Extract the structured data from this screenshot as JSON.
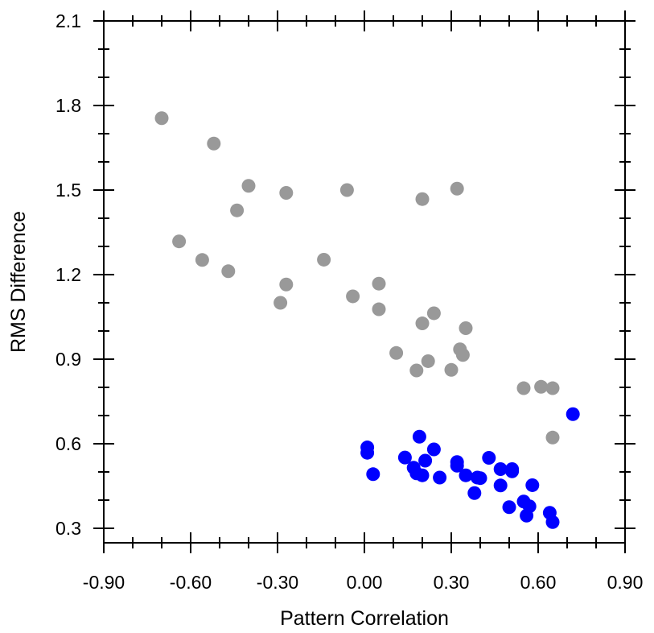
{
  "chart_data": {
    "type": "scatter",
    "xlabel": "Pattern Correlation",
    "ylabel": "RMS Difference",
    "xlim": [
      -0.9,
      0.9
    ],
    "ylim": [
      0.25,
      2.1
    ],
    "x_ticks": [
      "-0.90",
      "-0.60",
      "-0.30",
      "0.00",
      "0.30",
      "0.60",
      "0.90"
    ],
    "y_ticks": [
      "0.3",
      "0.6",
      "0.9",
      "1.2",
      "1.5",
      "1.8",
      "2.1"
    ],
    "x_tick_values": [
      -0.9,
      -0.6,
      -0.3,
      0.0,
      0.3,
      0.6,
      0.9
    ],
    "y_tick_values": [
      0.3,
      0.6,
      0.9,
      1.2,
      1.5,
      1.8,
      2.1
    ],
    "grid": false,
    "series": [
      {
        "color": "#999999",
        "points": [
          [
            -0.7,
            1.755
          ],
          [
            -0.52,
            1.665
          ],
          [
            -0.4,
            1.515
          ],
          [
            -0.44,
            1.428
          ],
          [
            -0.27,
            1.49
          ],
          [
            -0.06,
            1.5
          ],
          [
            0.2,
            1.468
          ],
          [
            0.32,
            1.505
          ],
          [
            -0.64,
            1.318
          ],
          [
            -0.56,
            1.252
          ],
          [
            -0.47,
            1.212
          ],
          [
            -0.14,
            1.253
          ],
          [
            -0.27,
            1.165
          ],
          [
            -0.29,
            1.1
          ],
          [
            -0.04,
            1.123
          ],
          [
            0.05,
            1.168
          ],
          [
            0.05,
            1.077
          ],
          [
            0.24,
            1.063
          ],
          [
            0.2,
            1.027
          ],
          [
            0.35,
            1.01
          ],
          [
            0.11,
            0.922
          ],
          [
            0.22,
            0.893
          ],
          [
            0.18,
            0.86
          ],
          [
            0.33,
            0.935
          ],
          [
            0.34,
            0.915
          ],
          [
            0.3,
            0.862
          ],
          [
            0.55,
            0.797
          ],
          [
            0.61,
            0.802
          ],
          [
            0.65,
            0.797
          ],
          [
            0.65,
            0.622
          ]
        ]
      },
      {
        "color": "#0000ff",
        "points": [
          [
            0.01,
            0.587
          ],
          [
            0.01,
            0.568
          ],
          [
            0.03,
            0.492
          ],
          [
            0.14,
            0.551
          ],
          [
            0.17,
            0.515
          ],
          [
            0.19,
            0.625
          ],
          [
            0.21,
            0.54
          ],
          [
            0.24,
            0.58
          ],
          [
            0.18,
            0.495
          ],
          [
            0.2,
            0.488
          ],
          [
            0.26,
            0.48
          ],
          [
            0.32,
            0.535
          ],
          [
            0.32,
            0.522
          ],
          [
            0.35,
            0.488
          ],
          [
            0.39,
            0.48
          ],
          [
            0.4,
            0.478
          ],
          [
            0.43,
            0.55
          ],
          [
            0.47,
            0.51
          ],
          [
            0.51,
            0.51
          ],
          [
            0.51,
            0.502
          ],
          [
            0.47,
            0.452
          ],
          [
            0.58,
            0.453
          ],
          [
            0.38,
            0.425
          ],
          [
            0.5,
            0.375
          ],
          [
            0.55,
            0.395
          ],
          [
            0.57,
            0.378
          ],
          [
            0.56,
            0.345
          ],
          [
            0.64,
            0.355
          ],
          [
            0.65,
            0.322
          ],
          [
            0.72,
            0.705
          ]
        ]
      }
    ]
  }
}
